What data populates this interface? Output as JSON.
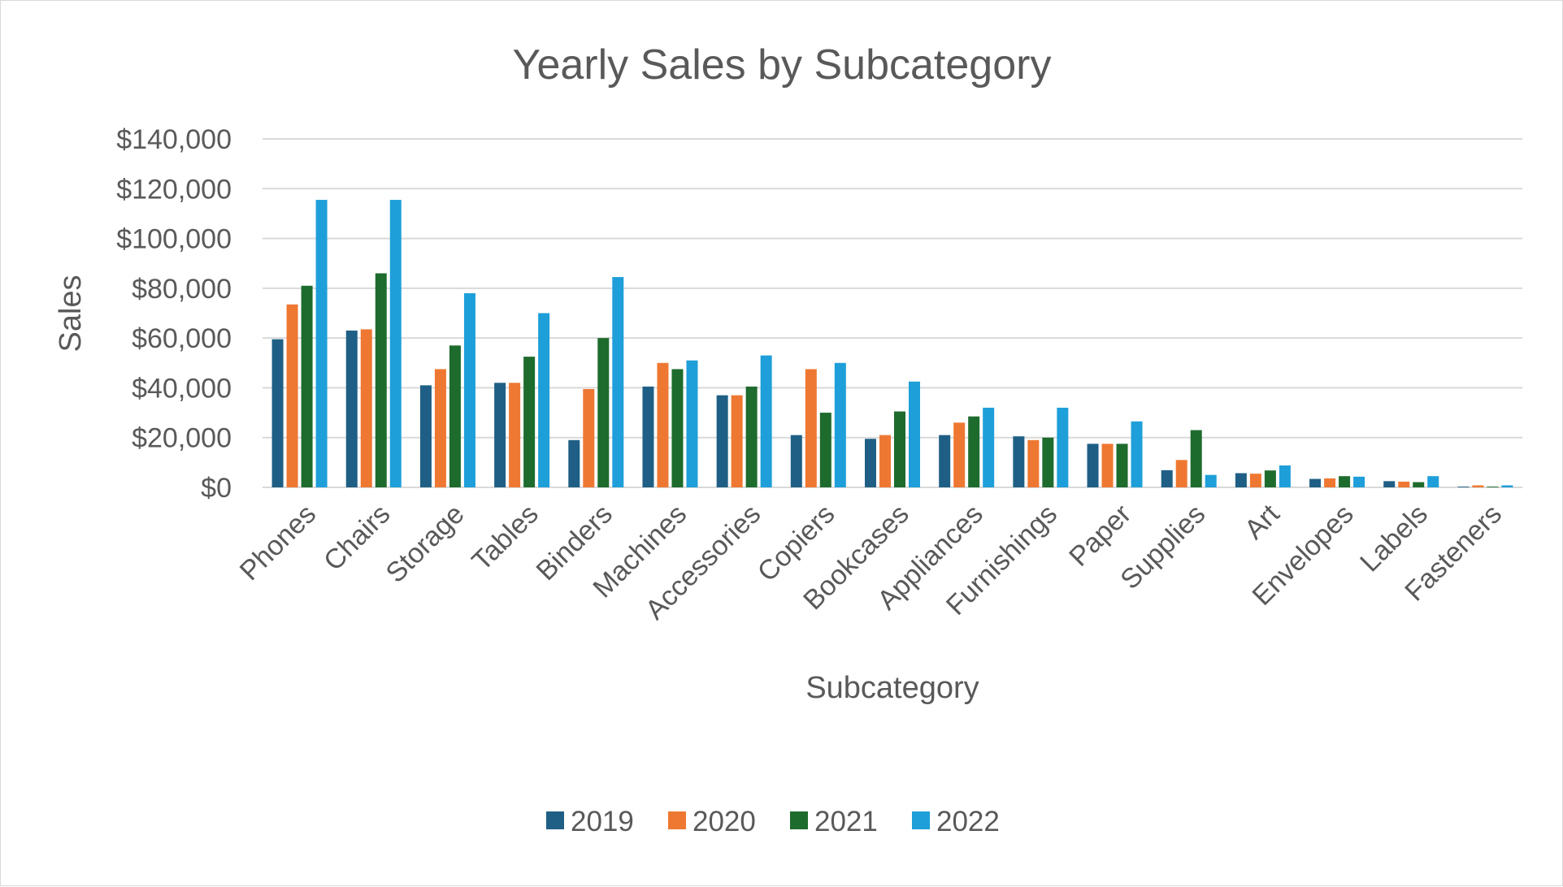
{
  "chart_data": {
    "type": "bar",
    "title": "Yearly Sales by Subcategory",
    "xlabel": "Subcategory",
    "ylabel": "Sales",
    "ylim": [
      0,
      140000
    ],
    "yticks": [
      0,
      20000,
      40000,
      60000,
      80000,
      100000,
      120000,
      140000
    ],
    "ytick_labels": [
      "$0",
      "$20,000",
      "$40,000",
      "$60,000",
      "$80,000",
      "$100,000",
      "$120,000",
      "$140,000"
    ],
    "grid": true,
    "legend_position": "bottom",
    "categories": [
      "Phones",
      "Chairs",
      "Storage",
      "Tables",
      "Binders",
      "Machines",
      "Accessories",
      "Copiers",
      "Bookcases",
      "Appliances",
      "Furnishings",
      "Paper",
      "Supplies",
      "Art",
      "Envelopes",
      "Labels",
      "Fasteners"
    ],
    "series": [
      {
        "name": "2019",
        "color": "#1f5f85",
        "values": [
          59500,
          63000,
          41000,
          42000,
          19000,
          40500,
          37000,
          21000,
          19500,
          21000,
          20500,
          17500,
          6900,
          5700,
          3400,
          2500,
          300
        ]
      },
      {
        "name": "2020",
        "color": "#ee7832",
        "values": [
          73500,
          63500,
          47500,
          42000,
          39500,
          50000,
          37000,
          47500,
          21000,
          26000,
          19000,
          17500,
          11000,
          5500,
          3600,
          2300,
          800
        ]
      },
      {
        "name": "2021",
        "color": "#1e6b2e",
        "values": [
          81000,
          86000,
          57000,
          52500,
          60000,
          47500,
          40500,
          30000,
          30500,
          28500,
          20000,
          17500,
          23000,
          6800,
          4500,
          2100,
          300
        ]
      },
      {
        "name": "2022",
        "color": "#1e9fd9",
        "values": [
          115500,
          115500,
          78000,
          70000,
          84500,
          51000,
          53000,
          50000,
          42500,
          32000,
          32000,
          26500,
          5000,
          8800,
          4300,
          4500,
          800
        ]
      }
    ]
  }
}
